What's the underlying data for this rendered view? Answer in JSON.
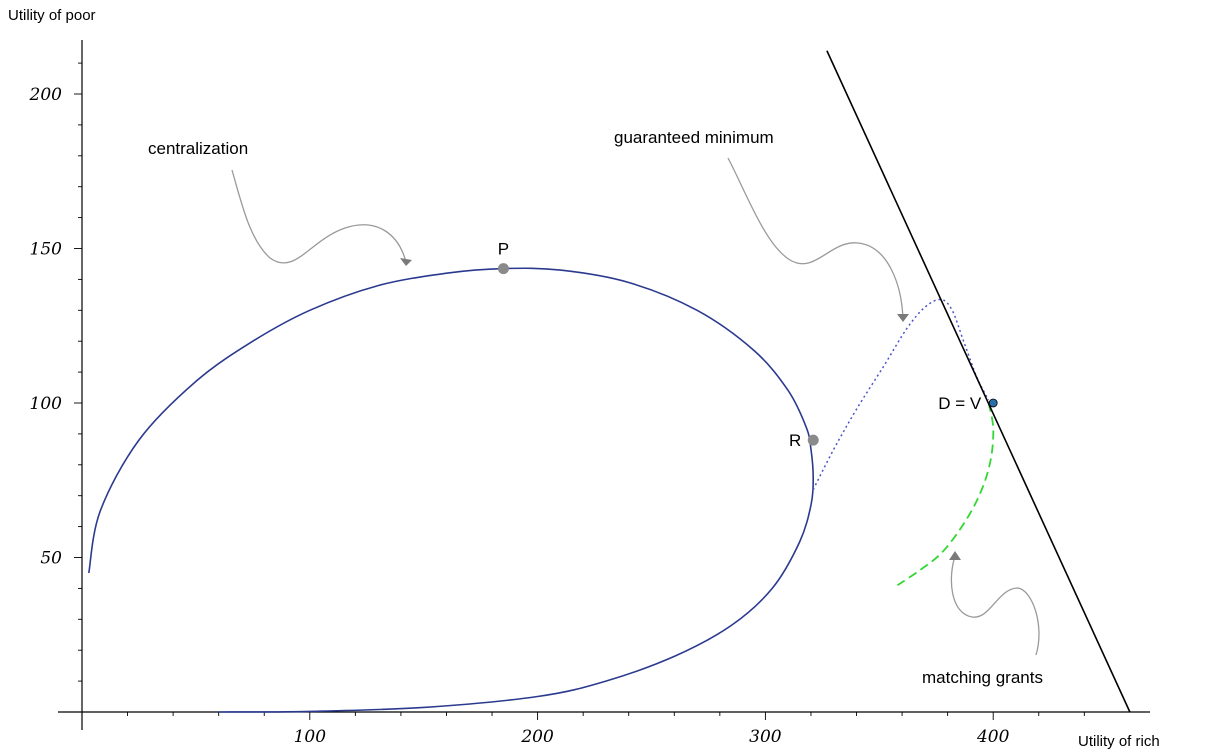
{
  "chart_data": {
    "type": "line",
    "xlabel": "Utility of rich",
    "ylabel": "Utility of poor",
    "xlim": [
      0,
      460
    ],
    "ylim": [
      0,
      215
    ],
    "x_ticks": [
      100,
      200,
      300,
      400
    ],
    "y_ticks": [
      50,
      100,
      150,
      200
    ],
    "grid": false,
    "series": [
      {
        "key": "centralization",
        "color": "#2b3a8f",
        "style": "solid",
        "points": [
          [
            3,
            45
          ],
          [
            8,
            65
          ],
          [
            25,
            88
          ],
          [
            50,
            107
          ],
          [
            75,
            120
          ],
          [
            100,
            130
          ],
          [
            130,
            138
          ],
          [
            160,
            142
          ],
          [
            185,
            143.5
          ],
          [
            210,
            143
          ],
          [
            240,
            139
          ],
          [
            270,
            130
          ],
          [
            295,
            117
          ],
          [
            310,
            104
          ],
          [
            318,
            92
          ],
          [
            320,
            85
          ],
          [
            321,
            76
          ],
          [
            320,
            67
          ],
          [
            315,
            55
          ],
          [
            303,
            40
          ],
          [
            285,
            28
          ],
          [
            260,
            18
          ],
          [
            230,
            10
          ],
          [
            200,
            5
          ],
          [
            150,
            1.5
          ],
          [
            100,
            0.2
          ],
          [
            60,
            0
          ]
        ]
      },
      {
        "key": "guaranteed_minimum",
        "color": "#4a55c8",
        "style": "dotted",
        "points": [
          [
            321,
            72
          ],
          [
            330,
            85
          ],
          [
            340,
            98
          ],
          [
            352,
            112
          ],
          [
            362,
            124
          ],
          [
            370,
            131
          ],
          [
            377,
            133.5
          ],
          [
            382,
            130
          ],
          [
            387,
            120
          ],
          [
            393,
            108
          ],
          [
            398,
            101
          ]
        ]
      },
      {
        "key": "matching_grants",
        "color": "#33d633",
        "style": "dashed",
        "points": [
          [
            398,
            100
          ],
          [
            400,
            92
          ],
          [
            399,
            82
          ],
          [
            395,
            72
          ],
          [
            388,
            62
          ],
          [
            378,
            52
          ],
          [
            368,
            46
          ],
          [
            358,
            41
          ]
        ]
      },
      {
        "key": "frontier",
        "color": "#000000",
        "style": "solid",
        "points": [
          [
            327,
            214
          ],
          [
            460,
            0
          ]
        ]
      }
    ],
    "points": [
      {
        "label": "P",
        "x": 185,
        "y": 143.5,
        "color": "#8a8a8a",
        "label_pos": "above"
      },
      {
        "label": "R",
        "x": 321,
        "y": 88,
        "color": "#8a8a8a",
        "label_pos": "left"
      },
      {
        "label": "D = V",
        "x": 400,
        "y": 100,
        "color": "#2a6fa6",
        "label_pos": "left"
      }
    ],
    "annotations": {
      "centralization": "centralization",
      "guaranteed_minimum": "guaranteed minimum",
      "matching_grants": "matching grants"
    }
  }
}
